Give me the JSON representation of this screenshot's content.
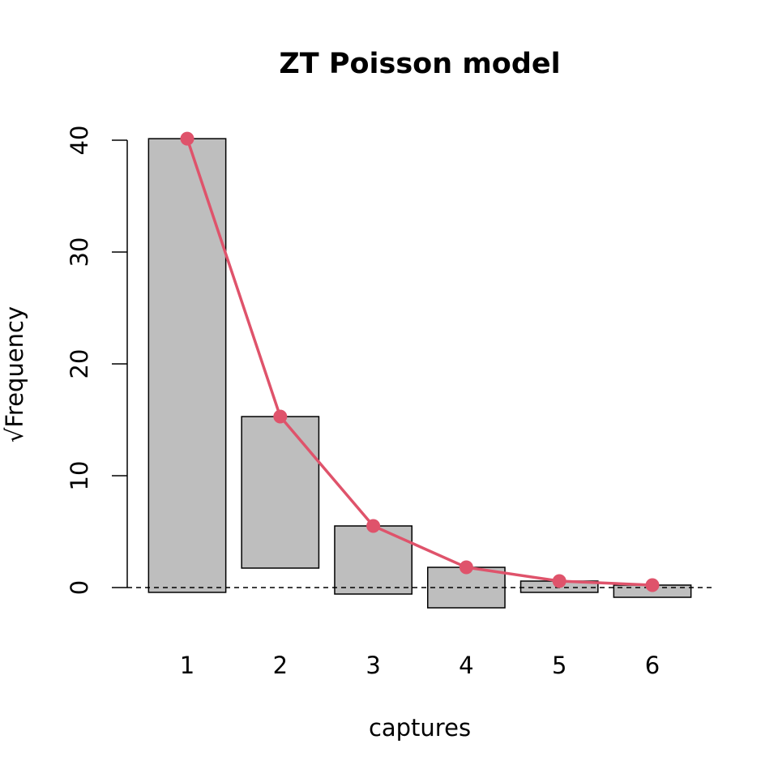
{
  "chart_data": {
    "type": "rootogram",
    "title": "ZT Poisson model",
    "x_label": "captures",
    "y_label": "√Frequency",
    "categories": [
      "1",
      "2",
      "3",
      "4",
      "5",
      "6"
    ],
    "observed": {
      "color": "#bebebe",
      "values": [
        40.57,
        13.55,
        6.09,
        3.62,
        1.01,
        1.09
      ]
    },
    "expected": {
      "color": "#df536b",
      "values": [
        40.14,
        15.29,
        5.51,
        1.81,
        0.58,
        0.22
      ]
    },
    "ylim": [
      -3.26,
      41.67
    ],
    "yticks": [
      0,
      10,
      20,
      30,
      40
    ]
  }
}
